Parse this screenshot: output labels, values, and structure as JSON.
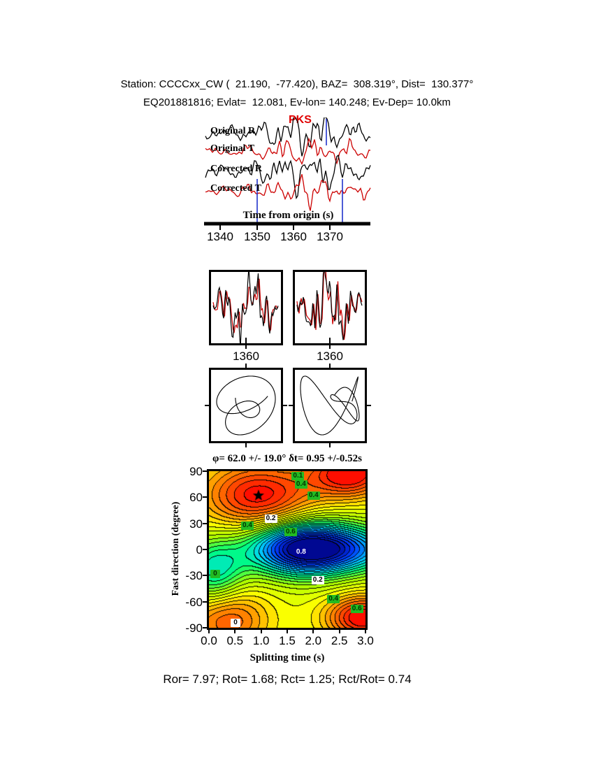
{
  "header": {
    "line1": "Station: CCCCxx_CW (  21.190,  -77.420), BAZ=  308.319°, Dist=  130.377°",
    "line2": "EQ201881816; Evlat=  12.081, Ev-lon= 140.248; Ev-Dep= 10.0km"
  },
  "trace_panel": {
    "phase_label": "PKS",
    "trace_labels": [
      "Original R",
      "Original T",
      "Corrected R",
      "Corrected T"
    ],
    "axis_title": "Time from origin (s)",
    "tick_labels": [
      "1340",
      "1350",
      "1360",
      "1370"
    ]
  },
  "zoom_panels": {
    "left_tick": "1360",
    "right_tick": "1360"
  },
  "result_line": "Ror= 7.97; Rot= 1.68; Rct= 1.25; Rct/Rot= 0.74",
  "chart_data": {
    "type": "heatmap",
    "title": "φ= 62.0 +/- 19.0° δt= 0.95 +/-0.52s",
    "xlabel": "Splitting time (s)",
    "ylabel": "Fast direction (degree)",
    "xlim": [
      0.0,
      3.0
    ],
    "ylim": [
      -90,
      90
    ],
    "x_tick_labels": [
      "0.0",
      "0.5",
      "1.0",
      "1.5",
      "2.0",
      "2.5",
      "3.0"
    ],
    "y_tick_labels": [
      "90",
      "60",
      "30",
      "0",
      "-30",
      "-60",
      "-90"
    ],
    "grid": false,
    "legend": "none",
    "best_solution": {
      "fast_direction_deg": 62.0,
      "fast_direction_err_deg": 19.0,
      "splitting_time_s": 0.95,
      "splitting_time_err_s": 0.52,
      "marker": "black-star"
    },
    "results": {
      "Ror": 7.97,
      "Rot": 1.68,
      "Rct": 1.25,
      "Rct_over_Rot": 0.74
    },
    "colormap": [
      "#000082",
      "#003cff",
      "#00d2ff",
      "#00ff78",
      "#aaff00",
      "#ffff00",
      "#ff9600",
      "#ff0000"
    ],
    "contour_labels": [
      {
        "text": "0.1",
        "t": 1.72,
        "phi": 84,
        "bg": "#22bb22",
        "fg": "#003300"
      },
      {
        "text": "0.4",
        "t": 1.78,
        "phi": 75,
        "bg": "#22bb22",
        "fg": "#003300"
      },
      {
        "text": "0.4",
        "t": 2.02,
        "phi": 62,
        "bg": "#22bb22",
        "fg": "#003300"
      },
      {
        "text": "0.2",
        "t": 1.2,
        "phi": 35,
        "bg": "#ffffff",
        "fg": "#000000"
      },
      {
        "text": "0.4",
        "t": 0.75,
        "phi": 27,
        "bg": "#22bb22",
        "fg": "#003300"
      },
      {
        "text": "0.6",
        "t": 1.58,
        "phi": 20,
        "bg": "#22bb22",
        "fg": "#003300"
      },
      {
        "text": "0.8",
        "t": 1.78,
        "phi": -3,
        "bg": "#000099",
        "fg": "#ffffff"
      },
      {
        "text": "0",
        "t": 0.16,
        "phi": -28,
        "bg": "#22bb22",
        "fg": "#003300"
      },
      {
        "text": "0.2",
        "t": 2.1,
        "phi": -35,
        "bg": "#ffffff",
        "fg": "#000000"
      },
      {
        "text": "0.4",
        "t": 2.4,
        "phi": -57,
        "bg": "#22bb22",
        "fg": "#003300"
      },
      {
        "text": "0.6",
        "t": 2.85,
        "phi": -68,
        "bg": "#22bb22",
        "fg": "#003300"
      },
      {
        "text": "0",
        "t": 0.55,
        "phi": -84,
        "bg": "#ffffff",
        "fg": "#000000"
      }
    ]
  }
}
